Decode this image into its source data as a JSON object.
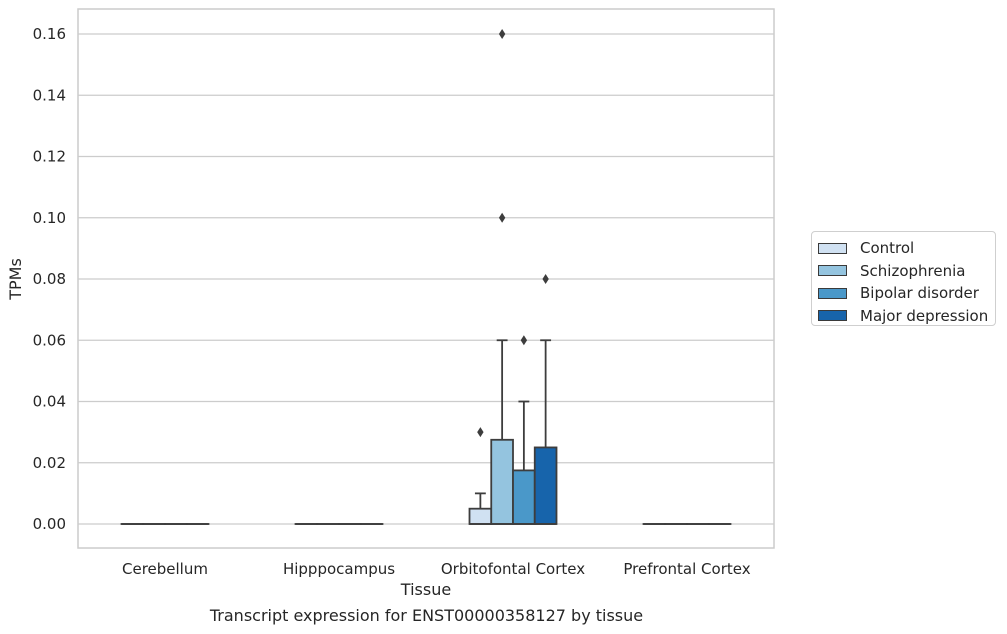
{
  "chart_data": {
    "type": "box",
    "xlabel": "Tissue",
    "ylabel": "TPMs",
    "caption": "Transcript expression for ENST00000358127 by tissue",
    "ylim": [
      -0.008,
      0.168
    ],
    "yticks": [
      0.0,
      0.02,
      0.04,
      0.06,
      0.08,
      0.1,
      0.12,
      0.14,
      0.16
    ],
    "ytick_labels": [
      "0.00",
      "0.02",
      "0.04",
      "0.06",
      "0.08",
      "0.10",
      "0.12",
      "0.14",
      "0.16"
    ],
    "grid": true,
    "legend_position": "right",
    "categories": [
      "Cerebellum",
      "Hipppocampus",
      "Orbitofontal Cortex",
      "Prefrontal Cortex"
    ],
    "series": [
      {
        "name": "Control",
        "color": "#d0e1f2",
        "boxes": [
          {
            "q1": 0,
            "median": 0,
            "q3": 0,
            "whisker_low": 0,
            "whisker_high": 0,
            "outliers": []
          },
          {
            "q1": 0,
            "median": 0,
            "q3": 0,
            "whisker_low": 0,
            "whisker_high": 0,
            "outliers": []
          },
          {
            "q1": 0,
            "median": 0,
            "q3": 0.005,
            "whisker_low": 0,
            "whisker_high": 0.01,
            "outliers": [
              0.03
            ]
          },
          {
            "q1": 0,
            "median": 0,
            "q3": 0,
            "whisker_low": 0,
            "whisker_high": 0,
            "outliers": []
          }
        ]
      },
      {
        "name": "Schizophrenia",
        "color": "#94c4df",
        "boxes": [
          {
            "q1": 0,
            "median": 0,
            "q3": 0,
            "whisker_low": 0,
            "whisker_high": 0,
            "outliers": []
          },
          {
            "q1": 0,
            "median": 0,
            "q3": 0,
            "whisker_low": 0,
            "whisker_high": 0,
            "outliers": []
          },
          {
            "q1": 0,
            "median": 0,
            "q3": 0.0275,
            "whisker_low": 0,
            "whisker_high": 0.06,
            "outliers": [
              0.1,
              0.16
            ]
          },
          {
            "q1": 0,
            "median": 0,
            "q3": 0,
            "whisker_low": 0,
            "whisker_high": 0,
            "outliers": []
          }
        ]
      },
      {
        "name": "Bipolar disorder",
        "color": "#4a98c9",
        "boxes": [
          {
            "q1": 0,
            "median": 0,
            "q3": 0,
            "whisker_low": 0,
            "whisker_high": 0,
            "outliers": []
          },
          {
            "q1": 0,
            "median": 0,
            "q3": 0,
            "whisker_low": 0,
            "whisker_high": 0,
            "outliers": []
          },
          {
            "q1": 0,
            "median": 0,
            "q3": 0.0175,
            "whisker_low": 0,
            "whisker_high": 0.04,
            "outliers": [
              0.06
            ]
          },
          {
            "q1": 0,
            "median": 0,
            "q3": 0,
            "whisker_low": 0,
            "whisker_high": 0,
            "outliers": []
          }
        ]
      },
      {
        "name": "Major depression",
        "color": "#1764ab",
        "boxes": [
          {
            "q1": 0,
            "median": 0,
            "q3": 0,
            "whisker_low": 0,
            "whisker_high": 0,
            "outliers": []
          },
          {
            "q1": 0,
            "median": 0,
            "q3": 0,
            "whisker_low": 0,
            "whisker_high": 0,
            "outliers": []
          },
          {
            "q1": 0,
            "median": 0,
            "q3": 0.025,
            "whisker_low": 0,
            "whisker_high": 0.06,
            "outliers": [
              0.08
            ]
          },
          {
            "q1": 0,
            "median": 0,
            "q3": 0,
            "whisker_low": 0,
            "whisker_high": 0,
            "outliers": []
          }
        ]
      }
    ]
  }
}
